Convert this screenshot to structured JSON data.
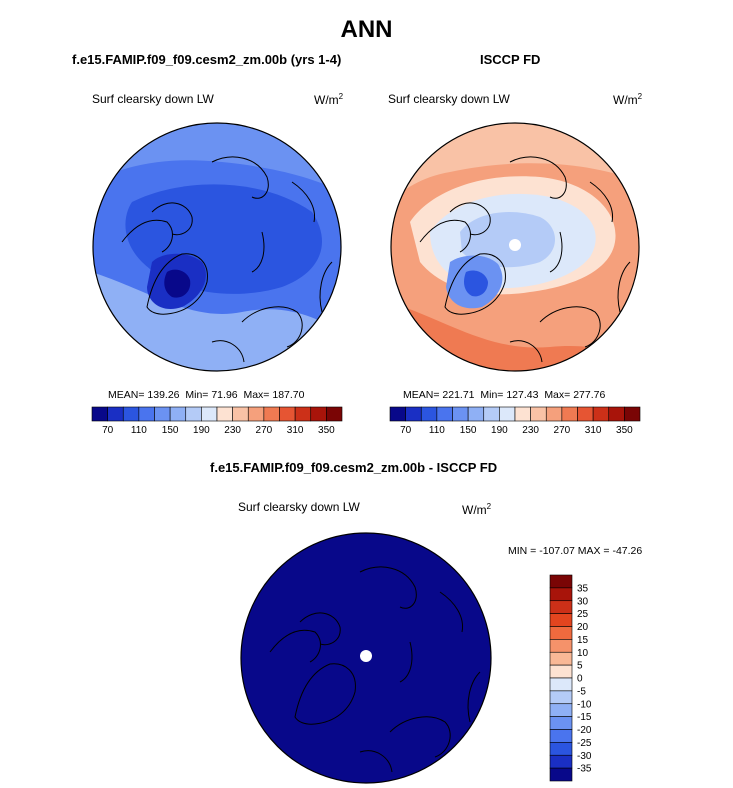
{
  "title": "ANN",
  "panels": [
    {
      "title": "f.e15.FAMIP.f09_f09.cesm2_zm.00b (yrs 1-4)",
      "variable": "Surf clearsky down LW",
      "units_base": "W/m",
      "units_exp": "2",
      "stats": {
        "mean_label": "MEAN=",
        "mean": "139.26",
        "min_label": "Min=",
        "min": "71.96",
        "max_label": "Max=",
        "max": "187.70"
      }
    },
    {
      "title": "ISCCP FD",
      "variable": "Surf clearsky down LW",
      "units_base": "W/m",
      "units_exp": "2",
      "stats": {
        "mean_label": "MEAN=",
        "mean": "221.71",
        "min_label": "Min=",
        "min": "127.43",
        "max_label": "Max=",
        "max": "277.76"
      }
    },
    {
      "title": "f.e15.FAMIP.f09_f09.cesm2_zm.00b - ISCCP FD",
      "variable": "Surf clearsky down LW",
      "units_base": "W/m",
      "units_exp": "2",
      "stats_text": "MIN = -107.07  MAX = -47.26"
    }
  ],
  "colorbar_abs": {
    "ticks": [
      "70",
      "110",
      "150",
      "190",
      "230",
      "270",
      "310",
      "350"
    ],
    "colors": [
      "#08088a",
      "#1a2fc4",
      "#2b55e0",
      "#4a74ee",
      "#6b92f2",
      "#8fb0f5",
      "#b4cbf7",
      "#dce8fa",
      "#fde2d2",
      "#f9c2a6",
      "#f5a07c",
      "#ef7a52",
      "#e65533",
      "#cc3018",
      "#a8140a",
      "#7a0505"
    ]
  },
  "colorbar_diff": {
    "ticks": [
      "35",
      "30",
      "25",
      "20",
      "15",
      "10",
      "5",
      "0",
      "-5",
      "-10",
      "-15",
      "-20",
      "-25",
      "-30",
      "-35"
    ],
    "colors": [
      "#7a0505",
      "#a8140a",
      "#cc3018",
      "#e3451f",
      "#ef6a3e",
      "#f5926a",
      "#f9b896",
      "#fde2d2",
      "#dce8fa",
      "#b4cbf7",
      "#8fb0f5",
      "#6b92f2",
      "#4a74ee",
      "#2b55e0",
      "#1a2fc4",
      "#08088a"
    ]
  },
  "chart_data": {
    "type": "heatmap",
    "projection": "north polar stereographic",
    "season": "ANN",
    "variable": "Surf clearsky down LW",
    "units": "W/m2",
    "abs_contour_levels": [
      70,
      90,
      110,
      130,
      150,
      170,
      190,
      210,
      230,
      250,
      270,
      290,
      310,
      330,
      350
    ],
    "diff_contour_levels": [
      -35,
      -30,
      -25,
      -20,
      -15,
      -10,
      -5,
      0,
      5,
      10,
      15,
      20,
      25,
      30,
      35
    ],
    "fields": [
      {
        "name": "f.e15.FAMIP.f09_f09.cesm2_zm.00b (yrs 1-4)",
        "mean": 139.26,
        "min": 71.96,
        "max": 187.7
      },
      {
        "name": "ISCCP FD",
        "mean": 221.71,
        "min": 127.43,
        "max": 277.76
      },
      {
        "name": "f.e15.FAMIP.f09_f09.cesm2_zm.00b - ISCCP FD",
        "min": -107.07,
        "max": -47.26
      }
    ]
  }
}
